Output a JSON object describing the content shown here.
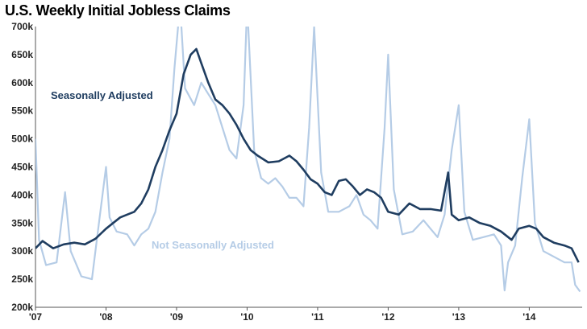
{
  "chart_data": {
    "type": "line",
    "title": "U.S. Weekly Initial Jobless Claims",
    "ylim": [
      200,
      700
    ],
    "yticks": [
      "200k",
      "250k",
      "300k",
      "350k",
      "400k",
      "450k",
      "500k",
      "550k",
      "600k",
      "650k",
      "700k"
    ],
    "xlim": [
      2007.0,
      2014.75
    ],
    "xticks": [
      "'07",
      "'08",
      "'09",
      "'10",
      "'11",
      "'12",
      "'13",
      "'14"
    ],
    "grid": false,
    "series": [
      {
        "name": "Seasonally Adjusted",
        "color": "#1f3d60",
        "points": [
          [
            2007.0,
            305
          ],
          [
            2007.1,
            318
          ],
          [
            2007.25,
            305
          ],
          [
            2007.4,
            312
          ],
          [
            2007.55,
            315
          ],
          [
            2007.7,
            312
          ],
          [
            2007.85,
            322
          ],
          [
            2008.0,
            340
          ],
          [
            2008.1,
            350
          ],
          [
            2008.2,
            360
          ],
          [
            2008.3,
            365
          ],
          [
            2008.4,
            370
          ],
          [
            2008.5,
            385
          ],
          [
            2008.6,
            410
          ],
          [
            2008.7,
            450
          ],
          [
            2008.8,
            480
          ],
          [
            2008.9,
            515
          ],
          [
            2009.0,
            545
          ],
          [
            2009.1,
            615
          ],
          [
            2009.2,
            650
          ],
          [
            2009.28,
            660
          ],
          [
            2009.35,
            635
          ],
          [
            2009.45,
            600
          ],
          [
            2009.55,
            570
          ],
          [
            2009.65,
            560
          ],
          [
            2009.75,
            545
          ],
          [
            2009.85,
            525
          ],
          [
            2009.95,
            500
          ],
          [
            2010.05,
            480
          ],
          [
            2010.15,
            470
          ],
          [
            2010.3,
            458
          ],
          [
            2010.45,
            460
          ],
          [
            2010.6,
            470
          ],
          [
            2010.7,
            460
          ],
          [
            2010.8,
            445
          ],
          [
            2010.9,
            428
          ],
          [
            2011.0,
            420
          ],
          [
            2011.1,
            405
          ],
          [
            2011.2,
            400
          ],
          [
            2011.3,
            425
          ],
          [
            2011.4,
            428
          ],
          [
            2011.5,
            415
          ],
          [
            2011.6,
            400
          ],
          [
            2011.7,
            410
          ],
          [
            2011.8,
            405
          ],
          [
            2011.9,
            395
          ],
          [
            2012.0,
            370
          ],
          [
            2012.15,
            365
          ],
          [
            2012.3,
            385
          ],
          [
            2012.45,
            375
          ],
          [
            2012.6,
            375
          ],
          [
            2012.75,
            372
          ],
          [
            2012.85,
            440
          ],
          [
            2012.9,
            365
          ],
          [
            2013.0,
            355
          ],
          [
            2013.15,
            360
          ],
          [
            2013.3,
            350
          ],
          [
            2013.45,
            345
          ],
          [
            2013.6,
            335
          ],
          [
            2013.75,
            320
          ],
          [
            2013.85,
            340
          ],
          [
            2014.0,
            345
          ],
          [
            2014.1,
            340
          ],
          [
            2014.2,
            325
          ],
          [
            2014.35,
            315
          ],
          [
            2014.5,
            310
          ],
          [
            2014.6,
            305
          ],
          [
            2014.7,
            280
          ]
        ]
      },
      {
        "name": "Not Seasonally Adjusted",
        "color": "#b5cce6",
        "points": [
          [
            2007.0,
            500
          ],
          [
            2007.05,
            320
          ],
          [
            2007.15,
            275
          ],
          [
            2007.3,
            280
          ],
          [
            2007.42,
            405
          ],
          [
            2007.5,
            300
          ],
          [
            2007.65,
            255
          ],
          [
            2007.8,
            250
          ],
          [
            2007.9,
            350
          ],
          [
            2008.0,
            450
          ],
          [
            2008.05,
            360
          ],
          [
            2008.15,
            335
          ],
          [
            2008.3,
            330
          ],
          [
            2008.4,
            310
          ],
          [
            2008.5,
            330
          ],
          [
            2008.6,
            340
          ],
          [
            2008.7,
            370
          ],
          [
            2008.8,
            440
          ],
          [
            2008.9,
            500
          ],
          [
            2008.97,
            625
          ],
          [
            2009.05,
            740
          ],
          [
            2009.12,
            590
          ],
          [
            2009.25,
            560
          ],
          [
            2009.35,
            600
          ],
          [
            2009.45,
            580
          ],
          [
            2009.55,
            560
          ],
          [
            2009.65,
            520
          ],
          [
            2009.75,
            480
          ],
          [
            2009.85,
            465
          ],
          [
            2009.95,
            560
          ],
          [
            2010.0,
            740
          ],
          [
            2010.1,
            480
          ],
          [
            2010.2,
            430
          ],
          [
            2010.3,
            420
          ],
          [
            2010.4,
            430
          ],
          [
            2010.5,
            415
          ],
          [
            2010.6,
            395
          ],
          [
            2010.7,
            395
          ],
          [
            2010.8,
            380
          ],
          [
            2010.88,
            520
          ],
          [
            2010.95,
            700
          ],
          [
            2011.05,
            440
          ],
          [
            2011.15,
            370
          ],
          [
            2011.3,
            370
          ],
          [
            2011.45,
            380
          ],
          [
            2011.55,
            400
          ],
          [
            2011.65,
            365
          ],
          [
            2011.75,
            355
          ],
          [
            2011.85,
            340
          ],
          [
            2011.95,
            520
          ],
          [
            2012.0,
            650
          ],
          [
            2012.08,
            410
          ],
          [
            2012.2,
            330
          ],
          [
            2012.35,
            335
          ],
          [
            2012.5,
            355
          ],
          [
            2012.6,
            340
          ],
          [
            2012.7,
            325
          ],
          [
            2012.8,
            365
          ],
          [
            2012.9,
            480
          ],
          [
            2013.0,
            560
          ],
          [
            2013.08,
            370
          ],
          [
            2013.2,
            320
          ],
          [
            2013.35,
            325
          ],
          [
            2013.5,
            330
          ],
          [
            2013.6,
            310
          ],
          [
            2013.65,
            230
          ],
          [
            2013.7,
            280
          ],
          [
            2013.8,
            310
          ],
          [
            2013.9,
            430
          ],
          [
            2014.0,
            535
          ],
          [
            2014.08,
            350
          ],
          [
            2014.2,
            300
          ],
          [
            2014.35,
            290
          ],
          [
            2014.5,
            280
          ],
          [
            2014.6,
            280
          ],
          [
            2014.65,
            240
          ],
          [
            2014.72,
            228
          ]
        ]
      }
    ]
  },
  "labels": {
    "sa": "Seasonally Adjusted",
    "nsa": "Not Seasonally Adjusted"
  }
}
